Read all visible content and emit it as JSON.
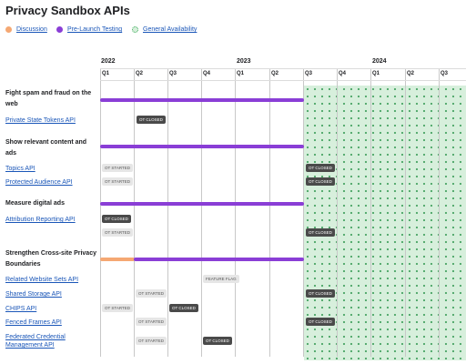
{
  "page": {
    "title": "Privacy Sandbox APIs"
  },
  "legend": [
    {
      "label": "Discussion",
      "color": "#f5a873"
    },
    {
      "label": "Pre-Launch Testing",
      "color": "#8a3ed6"
    },
    {
      "label": "General Availability",
      "color": "#34a853"
    }
  ],
  "years": [
    "2022",
    "2023",
    "2024"
  ],
  "quarters": [
    "Q1",
    "Q2",
    "Q3",
    "Q4",
    "Q1",
    "Q2",
    "Q3",
    "Q4",
    "Q1",
    "Q2",
    "Q3"
  ],
  "colors": {
    "discussion": "#f5a873",
    "testing": "#8a3ed6",
    "ga_fill": "#d7efdc",
    "ga_dot": "#4aa565"
  },
  "categories": [
    {
      "label": "Fight spam and fraud on the web"
    },
    {
      "label": "Show relevant content and ads"
    },
    {
      "label": "Measure digital ads"
    },
    {
      "label": "Strengthen Cross-site Privacy Boundaries"
    }
  ],
  "apis": [
    {
      "label": "Private State Tokens API"
    },
    {
      "label": "Topics API"
    },
    {
      "label": "Protected Audience API"
    },
    {
      "label": "Attribution Reporting API"
    },
    {
      "label": "Related Website Sets API"
    },
    {
      "label": "Shared Storage API"
    },
    {
      "label": "CHIPS API"
    },
    {
      "label": "Fenced Frames API"
    },
    {
      "label": "Federated Credential Management API"
    }
  ],
  "badges": {
    "ot_closed": "OT CLOSED",
    "ot_started": "OT STARTED",
    "feature_flag": "FEATURE FLAG"
  }
}
